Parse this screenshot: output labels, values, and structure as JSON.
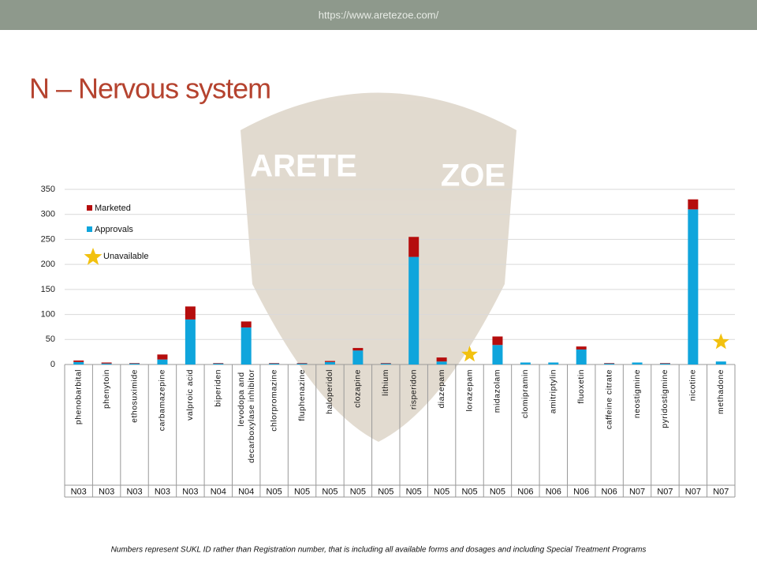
{
  "header": {
    "url": "https://www.aretezoe.com/"
  },
  "watermark": [
    "ARETE",
    "ZOE"
  ],
  "footnote": "Numbers represent SUKL ID rather than Registration number, that is including all available forms and dosages and including Special Treatment Programs",
  "chart_data": {
    "type": "bar",
    "stacked": true,
    "title": "N – Nervous system",
    "categories": [
      "phenobarbital",
      "phenytoin",
      "ethosuximide",
      "carbamazepine",
      "valproic acid",
      "biperiden",
      "levodopa and decarboxylase inhibitor",
      "chlorpromazine",
      "fluphenazine",
      "haloperidol",
      "clozapine",
      "lithium",
      "risperidon",
      "diazepam",
      "lorazepam",
      "midazolam",
      "clomipramin",
      "amitriptylin",
      "fluoxetin",
      "caffeine citrate",
      "neostigmine",
      "pyridostigmine",
      "nicotine",
      "methadone"
    ],
    "groups": [
      "N03",
      "N03",
      "N03",
      "N03",
      "N03",
      "N04",
      "N04",
      "N05",
      "N05",
      "N05",
      "N05",
      "N05",
      "N05",
      "N05",
      "N05",
      "N05",
      "N06",
      "N06",
      "N06",
      "N06",
      "N07",
      "N07",
      "N07",
      "N07"
    ],
    "series": [
      {
        "name": "Approvals",
        "color": "#0fa5dc",
        "values": [
          5,
          2,
          2,
          10,
          90,
          2,
          74,
          2,
          2,
          5,
          28,
          2,
          215,
          6,
          0,
          39,
          4,
          4,
          30,
          2,
          4,
          2,
          310,
          6
        ]
      },
      {
        "name": "Marketed",
        "color": "#b50d0d",
        "values": [
          3,
          2,
          1,
          10,
          26,
          1,
          12,
          1,
          1,
          2,
          5,
          1,
          40,
          8,
          0,
          17,
          0,
          0,
          6,
          1,
          0,
          1,
          20,
          0
        ]
      },
      {
        "name": "Unavailable",
        "type": "star",
        "color": "#f2c10f",
        "values": [
          null,
          null,
          null,
          null,
          null,
          null,
          null,
          null,
          null,
          null,
          null,
          null,
          null,
          null,
          20,
          null,
          null,
          null,
          null,
          null,
          null,
          null,
          null,
          45
        ]
      }
    ],
    "ylim": [
      0,
      350
    ],
    "yticks": [
      0,
      50,
      100,
      150,
      200,
      250,
      300,
      350
    ],
    "grid": true,
    "legend": "top-left"
  }
}
